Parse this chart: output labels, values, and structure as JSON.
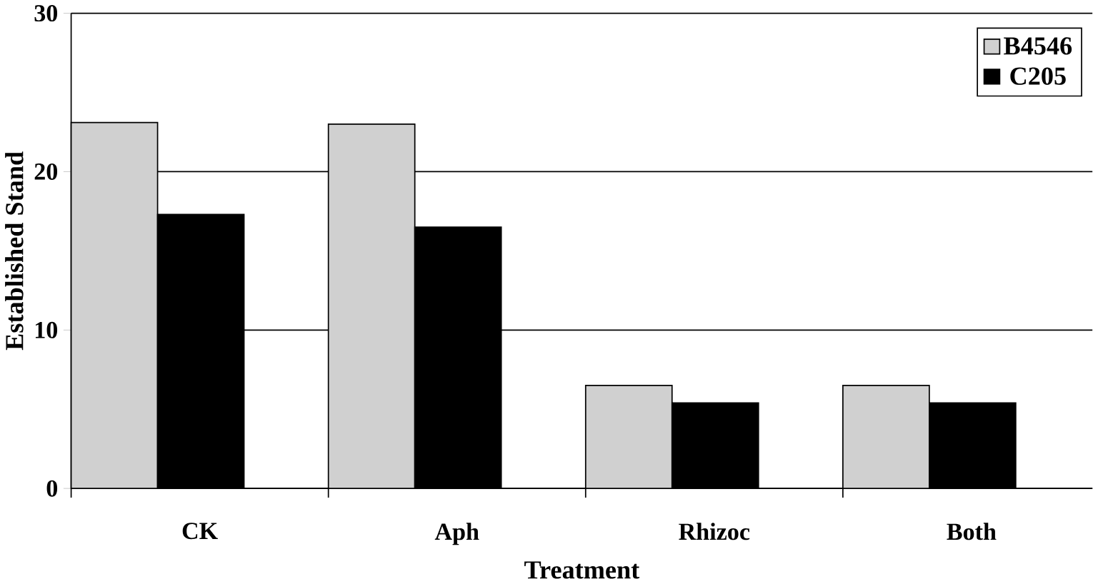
{
  "chart_data": {
    "type": "bar",
    "xlabel": "Treatment",
    "ylabel": "Established Stand",
    "categories": [
      "CK",
      "Aph",
      "Rhizoc",
      "Both"
    ],
    "series": [
      {
        "name": "B4546",
        "color": "#d0d0d0",
        "values": [
          23.1,
          23.0,
          6.5,
          6.5
        ]
      },
      {
        "name": "C205",
        "color": "#000000",
        "values": [
          17.3,
          16.5,
          5.4,
          5.4
        ]
      }
    ],
    "ylim": [
      0,
      30
    ],
    "yticks": [
      0,
      10,
      20,
      30
    ],
    "grid": "y",
    "legend": "top right"
  }
}
